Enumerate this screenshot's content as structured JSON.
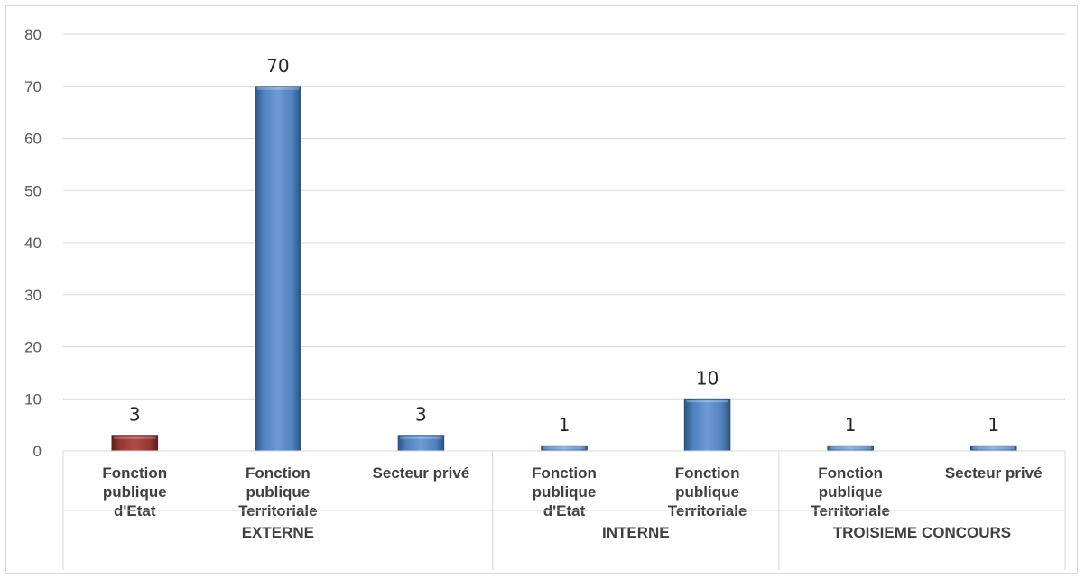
{
  "chart_data": {
    "type": "bar",
    "ylim": [
      0,
      80
    ],
    "yticks": [
      0,
      10,
      20,
      30,
      40,
      50,
      60,
      70,
      80
    ],
    "grid": true,
    "legend": "none",
    "groups": [
      {
        "label": "EXTERNE",
        "categories": [
          {
            "label": [
              "Fonction",
              "publique",
              "d'Etat"
            ],
            "value": 3,
            "color": "#953735"
          },
          {
            "label": [
              "Fonction",
              "publique",
              "Territoriale"
            ],
            "value": 70,
            "color": "#4f81bd"
          },
          {
            "label": [
              "Secteur privé"
            ],
            "value": 3,
            "color": "#4f81bd"
          }
        ]
      },
      {
        "label": "INTERNE",
        "categories": [
          {
            "label": [
              "Fonction",
              "publique",
              "d'Etat"
            ],
            "value": 1,
            "color": "#4f81bd"
          },
          {
            "label": [
              "Fonction",
              "publique",
              "Territoriale"
            ],
            "value": 10,
            "color": "#4f81bd"
          }
        ]
      },
      {
        "label": "TROISIEME CONCOURS",
        "categories": [
          {
            "label": [
              "Fonction",
              "publique",
              "Territoriale"
            ],
            "value": 1,
            "color": "#4f81bd"
          },
          {
            "label": [
              "Secteur privé"
            ],
            "value": 1,
            "color": "#4f81bd"
          }
        ]
      }
    ]
  }
}
